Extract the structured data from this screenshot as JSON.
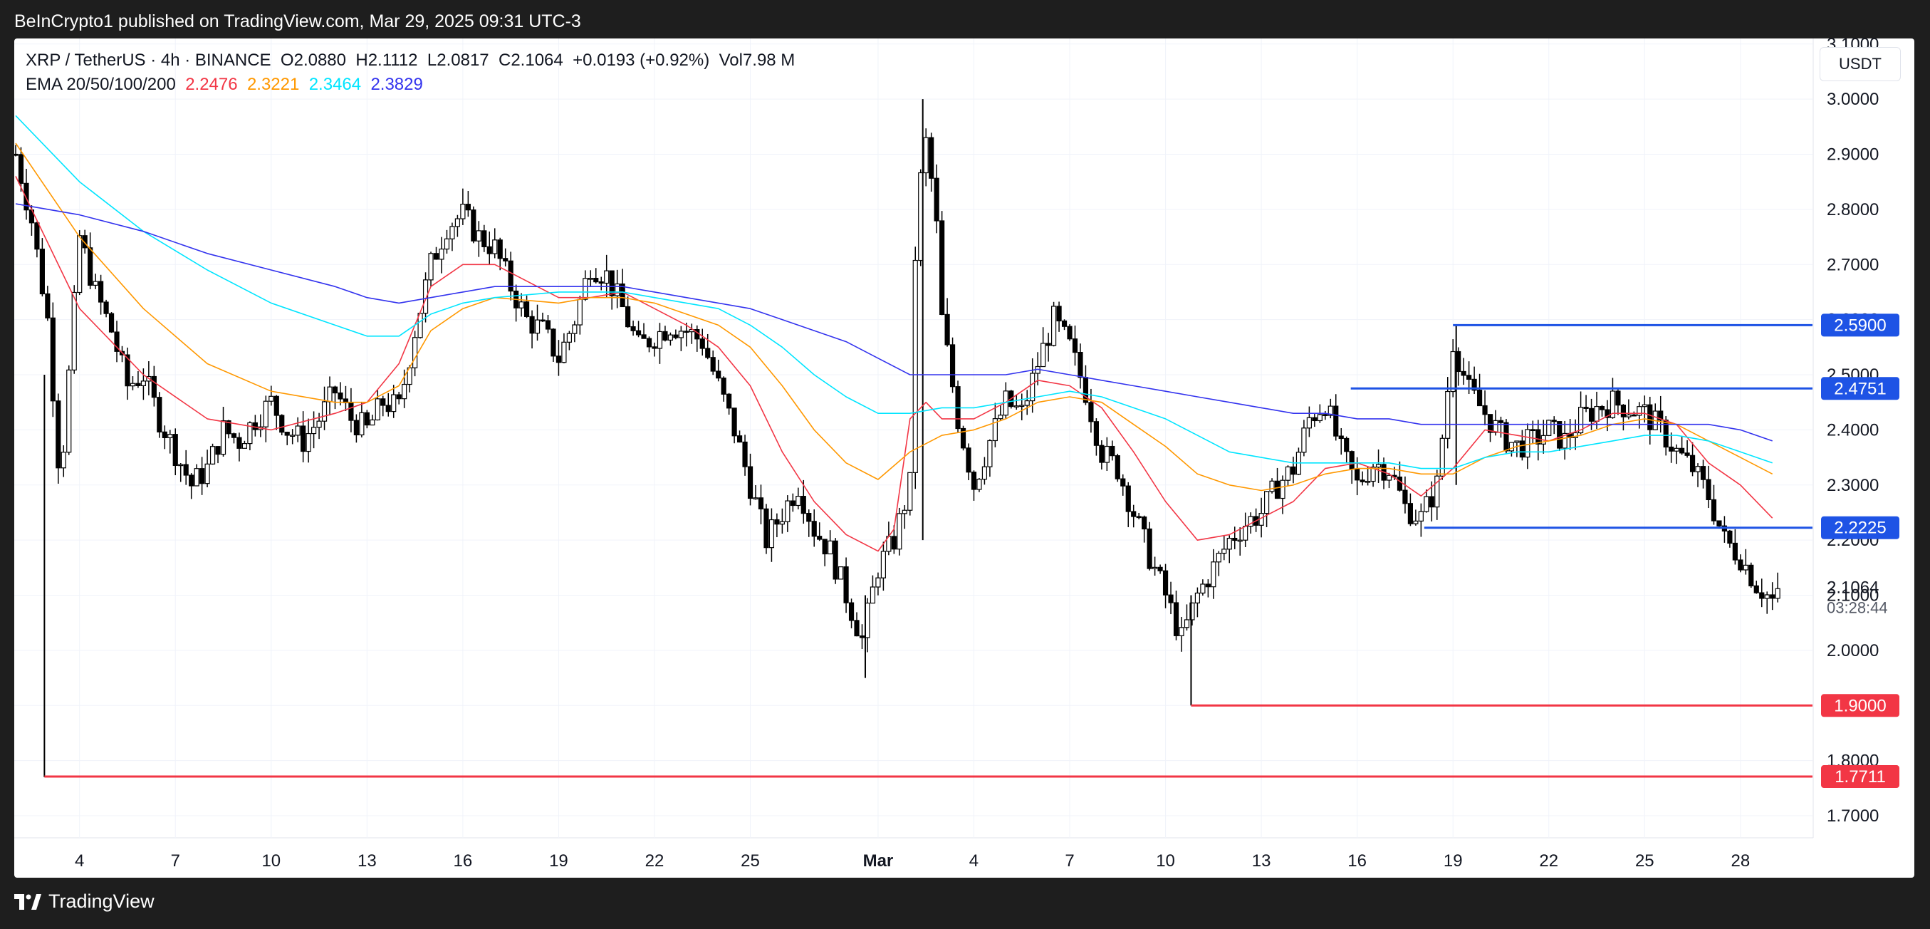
{
  "header": {
    "published_by": "BeInCrypto1 published on TradingView.com, Mar 29, 2025 09:31 UTC-3"
  },
  "legend": {
    "symbol": "XRP / TetherUS · 4h · BINANCE",
    "open_label": "O",
    "open": "2.0880",
    "high_label": "H",
    "high": "2.1112",
    "low_label": "L",
    "low": "2.0817",
    "close_label": "C",
    "close": "2.1064",
    "change": "+0.0193 (+0.92%)",
    "volume": "Vol7.98 M",
    "ema_label": "EMA 20/50/100/200",
    "ema20": "2.2476",
    "ema50": "2.3221",
    "ema100": "2.3464",
    "ema200": "2.3829"
  },
  "currency_button": "USDT",
  "footer": {
    "brand": "TradingView"
  },
  "chart_data": {
    "type": "candlestick",
    "interval": "4h",
    "y_axis": {
      "side": "right",
      "ticks": [
        "3.1000",
        "3.0000",
        "2.9000",
        "2.8000",
        "2.7000",
        "2.6000",
        "2.5000",
        "2.4000",
        "2.3000",
        "2.2000",
        "2.1000",
        "2.0000",
        "1.9000",
        "1.8000",
        "1.7000"
      ],
      "range": [
        1.66,
        3.11
      ]
    },
    "x_axis": {
      "ticks": [
        "4",
        "7",
        "10",
        "13",
        "16",
        "19",
        "22",
        "25",
        "Mar",
        "4",
        "7",
        "10",
        "13",
        "16",
        "19",
        "22",
        "25",
        "28"
      ],
      "tick_days": [
        3,
        6,
        9,
        12,
        15,
        18,
        21,
        24,
        28,
        31,
        34,
        37,
        40,
        43,
        46,
        49,
        52,
        55
      ],
      "start_day": 1,
      "end_day": 57.3
    },
    "current_price": {
      "value": 2.1064,
      "label": "2.1064",
      "countdown": "03:28:44"
    },
    "ema_colors": {
      "ema20": "#f23645",
      "ema50": "#ff9800",
      "ema100": "#00e5ff",
      "ema200": "#3333ee"
    },
    "ema_series": {
      "ema20": [
        [
          1,
          2.86
        ],
        [
          3,
          2.62
        ],
        [
          5,
          2.5
        ],
        [
          7,
          2.42
        ],
        [
          9,
          2.4
        ],
        [
          11,
          2.43
        ],
        [
          12,
          2.45
        ],
        [
          13,
          2.52
        ],
        [
          14,
          2.66
        ],
        [
          15,
          2.7
        ],
        [
          16,
          2.7
        ],
        [
          18,
          2.64
        ],
        [
          19,
          2.64
        ],
        [
          20,
          2.65
        ],
        [
          21,
          2.62
        ],
        [
          22,
          2.59
        ],
        [
          23,
          2.55
        ],
        [
          24,
          2.48
        ],
        [
          25,
          2.36
        ],
        [
          26,
          2.27
        ],
        [
          27,
          2.21
        ],
        [
          28,
          2.18
        ],
        [
          28.5,
          2.22
        ],
        [
          29,
          2.42
        ],
        [
          29.5,
          2.45
        ],
        [
          30,
          2.42
        ],
        [
          31,
          2.42
        ],
        [
          32,
          2.45
        ],
        [
          33,
          2.49
        ],
        [
          34,
          2.48
        ],
        [
          35,
          2.44
        ],
        [
          36,
          2.36
        ],
        [
          37,
          2.27
        ],
        [
          38,
          2.2
        ],
        [
          39,
          2.21
        ],
        [
          40,
          2.24
        ],
        [
          41,
          2.27
        ],
        [
          42,
          2.33
        ],
        [
          43,
          2.34
        ],
        [
          44,
          2.32
        ],
        [
          45,
          2.28
        ],
        [
          46,
          2.33
        ],
        [
          47,
          2.4
        ],
        [
          48,
          2.39
        ],
        [
          49,
          2.38
        ],
        [
          50,
          2.4
        ],
        [
          51,
          2.43
        ],
        [
          52,
          2.43
        ],
        [
          53,
          2.41
        ],
        [
          54,
          2.34
        ],
        [
          55,
          2.3
        ],
        [
          56,
          2.24
        ]
      ],
      "ema50": [
        [
          1,
          2.92
        ],
        [
          3,
          2.75
        ],
        [
          5,
          2.62
        ],
        [
          7,
          2.52
        ],
        [
          9,
          2.47
        ],
        [
          11,
          2.45
        ],
        [
          12,
          2.45
        ],
        [
          13,
          2.48
        ],
        [
          14,
          2.58
        ],
        [
          15,
          2.62
        ],
        [
          16,
          2.64
        ],
        [
          18,
          2.63
        ],
        [
          19,
          2.64
        ],
        [
          20,
          2.64
        ],
        [
          21,
          2.63
        ],
        [
          22,
          2.61
        ],
        [
          23,
          2.59
        ],
        [
          24,
          2.55
        ],
        [
          25,
          2.48
        ],
        [
          26,
          2.4
        ],
        [
          27,
          2.34
        ],
        [
          28,
          2.31
        ],
        [
          29,
          2.36
        ],
        [
          30,
          2.39
        ],
        [
          31,
          2.4
        ],
        [
          32,
          2.42
        ],
        [
          33,
          2.45
        ],
        [
          34,
          2.46
        ],
        [
          35,
          2.45
        ],
        [
          36,
          2.41
        ],
        [
          37,
          2.37
        ],
        [
          38,
          2.32
        ],
        [
          39,
          2.3
        ],
        [
          40,
          2.29
        ],
        [
          41,
          2.3
        ],
        [
          42,
          2.32
        ],
        [
          43,
          2.33
        ],
        [
          44,
          2.33
        ],
        [
          45,
          2.32
        ],
        [
          46,
          2.32
        ],
        [
          47,
          2.35
        ],
        [
          48,
          2.37
        ],
        [
          49,
          2.38
        ],
        [
          50,
          2.39
        ],
        [
          51,
          2.41
        ],
        [
          52,
          2.42
        ],
        [
          53,
          2.41
        ],
        [
          54,
          2.38
        ],
        [
          55,
          2.35
        ],
        [
          56,
          2.32
        ]
      ],
      "ema100": [
        [
          1,
          2.97
        ],
        [
          3,
          2.85
        ],
        [
          5,
          2.76
        ],
        [
          7,
          2.69
        ],
        [
          9,
          2.63
        ],
        [
          11,
          2.59
        ],
        [
          12,
          2.57
        ],
        [
          13,
          2.57
        ],
        [
          14,
          2.61
        ],
        [
          15,
          2.63
        ],
        [
          16,
          2.64
        ],
        [
          18,
          2.65
        ],
        [
          19,
          2.65
        ],
        [
          20,
          2.65
        ],
        [
          21,
          2.64
        ],
        [
          22,
          2.63
        ],
        [
          23,
          2.62
        ],
        [
          24,
          2.59
        ],
        [
          25,
          2.55
        ],
        [
          26,
          2.5
        ],
        [
          27,
          2.46
        ],
        [
          28,
          2.43
        ],
        [
          29,
          2.43
        ],
        [
          30,
          2.44
        ],
        [
          31,
          2.44
        ],
        [
          32,
          2.45
        ],
        [
          33,
          2.46
        ],
        [
          34,
          2.47
        ],
        [
          35,
          2.46
        ],
        [
          36,
          2.44
        ],
        [
          37,
          2.42
        ],
        [
          38,
          2.39
        ],
        [
          39,
          2.36
        ],
        [
          40,
          2.35
        ],
        [
          41,
          2.34
        ],
        [
          42,
          2.34
        ],
        [
          43,
          2.34
        ],
        [
          44,
          2.34
        ],
        [
          45,
          2.33
        ],
        [
          46,
          2.33
        ],
        [
          47,
          2.35
        ],
        [
          48,
          2.36
        ],
        [
          49,
          2.36
        ],
        [
          50,
          2.37
        ],
        [
          51,
          2.38
        ],
        [
          52,
          2.39
        ],
        [
          53,
          2.39
        ],
        [
          54,
          2.38
        ],
        [
          55,
          2.36
        ],
        [
          56,
          2.34
        ]
      ],
      "ema200": [
        [
          1,
          2.81
        ],
        [
          3,
          2.79
        ],
        [
          5,
          2.76
        ],
        [
          7,
          2.72
        ],
        [
          9,
          2.69
        ],
        [
          11,
          2.66
        ],
        [
          12,
          2.64
        ],
        [
          13,
          2.63
        ],
        [
          14,
          2.64
        ],
        [
          15,
          2.65
        ],
        [
          16,
          2.66
        ],
        [
          18,
          2.66
        ],
        [
          19,
          2.66
        ],
        [
          20,
          2.66
        ],
        [
          21,
          2.65
        ],
        [
          22,
          2.64
        ],
        [
          23,
          2.63
        ],
        [
          24,
          2.62
        ],
        [
          25,
          2.6
        ],
        [
          26,
          2.58
        ],
        [
          27,
          2.56
        ],
        [
          28,
          2.53
        ],
        [
          29,
          2.5
        ],
        [
          30,
          2.5
        ],
        [
          31,
          2.5
        ],
        [
          32,
          2.5
        ],
        [
          33,
          2.51
        ],
        [
          34,
          2.5
        ],
        [
          35,
          2.49
        ],
        [
          36,
          2.48
        ],
        [
          37,
          2.47
        ],
        [
          38,
          2.46
        ],
        [
          39,
          2.45
        ],
        [
          40,
          2.44
        ],
        [
          41,
          2.43
        ],
        [
          42,
          2.43
        ],
        [
          43,
          2.42
        ],
        [
          44,
          2.42
        ],
        [
          45,
          2.41
        ],
        [
          46,
          2.41
        ],
        [
          47,
          2.41
        ],
        [
          48,
          2.41
        ],
        [
          49,
          2.41
        ],
        [
          50,
          2.41
        ],
        [
          51,
          2.41
        ],
        [
          52,
          2.41
        ],
        [
          53,
          2.41
        ],
        [
          54,
          2.41
        ],
        [
          55,
          2.4
        ],
        [
          56,
          2.38
        ]
      ]
    },
    "price_path": [
      [
        1,
        2.9
      ],
      [
        1.5,
        2.78
      ],
      [
        2,
        2.6
      ],
      [
        2.4,
        2.3
      ],
      [
        2.6,
        2.45
      ],
      [
        3,
        2.75
      ],
      [
        3.5,
        2.65
      ],
      [
        4,
        2.58
      ],
      [
        4.5,
        2.48
      ],
      [
        5,
        2.5
      ],
      [
        5.5,
        2.42
      ],
      [
        6,
        2.36
      ],
      [
        6.5,
        2.3
      ],
      [
        7,
        2.33
      ],
      [
        7.5,
        2.4
      ],
      [
        8,
        2.38
      ],
      [
        8.5,
        2.42
      ],
      [
        9,
        2.45
      ],
      [
        9.5,
        2.4
      ],
      [
        10,
        2.38
      ],
      [
        10.5,
        2.42
      ],
      [
        11,
        2.47
      ],
      [
        11.5,
        2.42
      ],
      [
        12,
        2.4
      ],
      [
        12.5,
        2.45
      ],
      [
        13,
        2.44
      ],
      [
        13.5,
        2.58
      ],
      [
        14,
        2.7
      ],
      [
        14.5,
        2.77
      ],
      [
        15,
        2.79
      ],
      [
        15.5,
        2.75
      ],
      [
        16,
        2.73
      ],
      [
        16.5,
        2.66
      ],
      [
        17,
        2.6
      ],
      [
        17.5,
        2.58
      ],
      [
        18,
        2.53
      ],
      [
        18.5,
        2.6
      ],
      [
        19,
        2.7
      ],
      [
        19.5,
        2.68
      ],
      [
        20,
        2.62
      ],
      [
        20.5,
        2.55
      ],
      [
        21,
        2.57
      ],
      [
        21.5,
        2.59
      ],
      [
        22,
        2.58
      ],
      [
        22.5,
        2.56
      ],
      [
        23,
        2.48
      ],
      [
        23.5,
        2.4
      ],
      [
        24,
        2.3
      ],
      [
        24.5,
        2.2
      ],
      [
        25,
        2.25
      ],
      [
        25.5,
        2.3
      ],
      [
        26,
        2.22
      ],
      [
        26.5,
        2.18
      ],
      [
        27,
        2.1
      ],
      [
        27.5,
        2.02
      ],
      [
        28,
        2.15
      ],
      [
        28.5,
        2.2
      ],
      [
        29,
        2.3
      ],
      [
        29.2,
        2.8
      ],
      [
        29.5,
        2.92
      ],
      [
        29.8,
        2.8
      ],
      [
        30,
        2.6
      ],
      [
        30.5,
        2.42
      ],
      [
        31,
        2.3
      ],
      [
        31.5,
        2.38
      ],
      [
        32,
        2.45
      ],
      [
        32.5,
        2.43
      ],
      [
        33,
        2.52
      ],
      [
        33.5,
        2.6
      ],
      [
        34,
        2.55
      ],
      [
        34.5,
        2.47
      ],
      [
        35,
        2.36
      ],
      [
        35.5,
        2.33
      ],
      [
        36,
        2.25
      ],
      [
        36.5,
        2.17
      ],
      [
        37,
        2.1
      ],
      [
        37.5,
        2.02
      ],
      [
        38,
        2.1
      ],
      [
        38.5,
        2.15
      ],
      [
        39,
        2.2
      ],
      [
        39.5,
        2.23
      ],
      [
        40,
        2.25
      ],
      [
        40.5,
        2.3
      ],
      [
        41,
        2.33
      ],
      [
        41.5,
        2.42
      ],
      [
        42,
        2.45
      ],
      [
        42.5,
        2.36
      ],
      [
        43,
        2.3
      ],
      [
        43.5,
        2.34
      ],
      [
        44,
        2.33
      ],
      [
        44.5,
        2.26
      ],
      [
        45,
        2.24
      ],
      [
        45.5,
        2.3
      ],
      [
        46,
        2.56
      ],
      [
        46.5,
        2.47
      ],
      [
        47,
        2.43
      ],
      [
        47.5,
        2.39
      ],
      [
        48,
        2.37
      ],
      [
        48.5,
        2.38
      ],
      [
        49,
        2.4
      ],
      [
        49.5,
        2.38
      ],
      [
        50,
        2.42
      ],
      [
        50.5,
        2.44
      ],
      [
        51,
        2.45
      ],
      [
        51.5,
        2.44
      ],
      [
        52,
        2.43
      ],
      [
        52.5,
        2.4
      ],
      [
        53,
        2.36
      ],
      [
        53.5,
        2.33
      ],
      [
        54,
        2.28
      ],
      [
        54.5,
        2.2
      ],
      [
        55,
        2.17
      ],
      [
        55.5,
        2.12
      ],
      [
        56,
        2.09
      ],
      [
        56.3,
        2.1
      ]
    ],
    "wick_highlights": [
      {
        "x": 1.9,
        "high": 2.5,
        "low": 1.77
      },
      {
        "x": 29.4,
        "high": 3.0,
        "low": 2.2
      },
      {
        "x": 37.8,
        "high": 2.1,
        "low": 1.9
      },
      {
        "x": 46.1,
        "high": 2.59,
        "low": 2.3
      },
      {
        "x": 27.6,
        "high": 2.1,
        "low": 1.95
      }
    ],
    "levels": [
      {
        "price": 2.59,
        "label": "2.5900",
        "color": "#1e53e5",
        "start_day": 46.0
      },
      {
        "price": 2.4751,
        "label": "2.4751",
        "color": "#1e53e5",
        "start_day": 42.8
      },
      {
        "price": 2.2225,
        "label": "2.2225",
        "color": "#1e53e5",
        "start_day": 45.1
      },
      {
        "price": 1.9,
        "label": "1.9000",
        "color": "#f23645",
        "start_day": 37.8
      },
      {
        "price": 1.7711,
        "label": "1.7711",
        "color": "#f23645",
        "start_day": 1.9
      }
    ]
  }
}
